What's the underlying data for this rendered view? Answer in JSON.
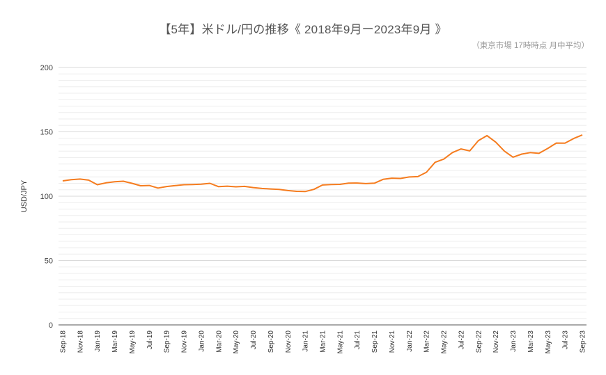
{
  "title": "【5年】米ドル/円の推移《 2018年9月ー2023年9月 》",
  "subtitle": "（東京市場 17時時点 月中平均）",
  "colors": {
    "line": "#F57C1F",
    "grid_minor": "#EEEEEE",
    "grid_major": "#D9D9D9",
    "axis": "#555555"
  },
  "chart_data": {
    "type": "line",
    "title": "【5年】米ドル/円の推移《 2018年9月ー2023年9月 》",
    "subtitle": "（東京市場 17時時点 月中平均）",
    "xlabel": "",
    "ylabel": "USD/JPY",
    "ylim": [
      0,
      200
    ],
    "yticks": [
      0,
      50,
      100,
      150,
      200
    ],
    "grid": true,
    "minor_grid_step": 5,
    "legend": "none",
    "x_tick_labels": [
      "Sep-18",
      "Nov-18",
      "Jan-19",
      "Mar-19",
      "May-19",
      "Jul-19",
      "Sep-19",
      "Nov-19",
      "Jan-20",
      "Mar-20",
      "May-20",
      "Jul-20",
      "Sep-20",
      "Nov-20",
      "Jan-21",
      "Mar-21",
      "May-21",
      "Jul-21",
      "Sep-21",
      "Nov-21",
      "Jan-22",
      "Mar-22",
      "May-22",
      "Jul-22",
      "Sep-22",
      "Nov-22",
      "Jan-23",
      "Mar-23",
      "May-23",
      "Jul-23",
      "Sep-23"
    ],
    "x": [
      "Sep-18",
      "Oct-18",
      "Nov-18",
      "Dec-18",
      "Jan-19",
      "Feb-19",
      "Mar-19",
      "Apr-19",
      "May-19",
      "Jun-19",
      "Jul-19",
      "Aug-19",
      "Sep-19",
      "Oct-19",
      "Nov-19",
      "Dec-19",
      "Jan-20",
      "Feb-20",
      "Mar-20",
      "Apr-20",
      "May-20",
      "Jun-20",
      "Jul-20",
      "Aug-20",
      "Sep-20",
      "Oct-20",
      "Nov-20",
      "Dec-20",
      "Jan-21",
      "Feb-21",
      "Mar-21",
      "Apr-21",
      "May-21",
      "Jun-21",
      "Jul-21",
      "Aug-21",
      "Sep-21",
      "Oct-21",
      "Nov-21",
      "Dec-21",
      "Jan-22",
      "Feb-22",
      "Mar-22",
      "Apr-22",
      "May-22",
      "Jun-22",
      "Jul-22",
      "Aug-22",
      "Sep-22",
      "Oct-22",
      "Nov-22",
      "Dec-22",
      "Jan-23",
      "Feb-23",
      "Mar-23",
      "Apr-23",
      "May-23",
      "Jun-23",
      "Jul-23",
      "Aug-23",
      "Sep-23"
    ],
    "series": [
      {
        "name": "USD/JPY",
        "values": [
          111.9,
          112.8,
          113.3,
          112.5,
          108.9,
          110.4,
          111.2,
          111.6,
          110.0,
          108.1,
          108.3,
          106.3,
          107.5,
          108.2,
          108.9,
          109.1,
          109.3,
          110.0,
          107.4,
          107.8,
          107.3,
          107.6,
          106.7,
          106.0,
          105.6,
          105.3,
          104.4,
          103.8,
          103.6,
          105.3,
          108.7,
          109.1,
          109.2,
          110.1,
          110.2,
          109.8,
          110.1,
          113.1,
          114.0,
          113.8,
          114.9,
          115.2,
          118.6,
          126.3,
          128.8,
          133.9,
          136.7,
          135.2,
          143.2,
          147.1,
          142.0,
          135.0,
          130.3,
          132.7,
          133.9,
          133.3,
          137.1,
          141.3,
          141.2,
          144.8,
          147.6
        ]
      }
    ]
  }
}
